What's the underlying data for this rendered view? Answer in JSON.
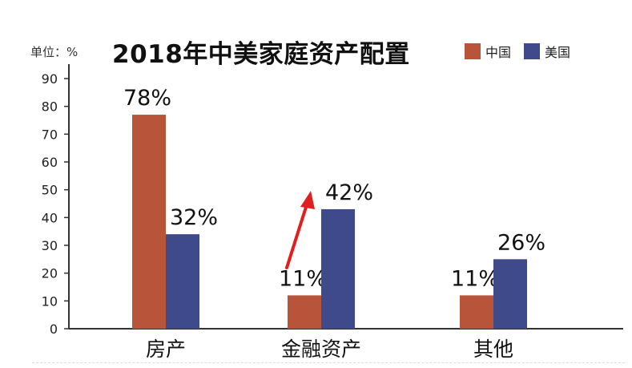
{
  "chart_data": {
    "type": "bar",
    "title": "2018年中美家庭资产配置",
    "unit_label": "单位：%",
    "categories": [
      "房产",
      "金融资产",
      "其他"
    ],
    "series": [
      {
        "name": "中国",
        "color": "#b8543a",
        "values": [
          78,
          11,
          11
        ],
        "labels": [
          "78%",
          "11%",
          "11%"
        ],
        "heights": [
          77,
          12,
          12
        ]
      },
      {
        "name": "美国",
        "color": "#3f4a8a",
        "values": [
          32,
          42,
          26
        ],
        "labels": [
          "32%",
          "42%",
          "26%"
        ],
        "heights": [
          34,
          43,
          25
        ]
      }
    ],
    "ylim": [
      0,
      90
    ],
    "yticks": [
      0,
      10,
      20,
      30,
      40,
      50,
      60,
      70,
      80,
      90
    ],
    "annotation": {
      "type": "arrow",
      "color": "#e02020",
      "note": "increase toward 金融资产"
    }
  }
}
